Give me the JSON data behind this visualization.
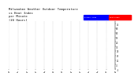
{
  "title": "Milwaukee Weather Outdoor Temperature\nvs Heat Index\nper Minute\n(24 Hours)",
  "title_fontsize": 2.8,
  "background_color": "#ffffff",
  "plot_background": "#ffffff",
  "dot_color_temp": "#ff0000",
  "dot_color_heat": "#ff0000",
  "legend_blue_color": "#0000ff",
  "legend_red_color": "#ff0000",
  "minutes": 1440,
  "y_min": -4,
  "y_max": 80,
  "yticks": [
    -4,
    4,
    12,
    20,
    28,
    36,
    44,
    52,
    60,
    68,
    76
  ],
  "ytick_labels": [
    "-4",
    "4",
    "12",
    "20",
    "28",
    "36",
    "44",
    "52",
    "60",
    "68",
    "76"
  ],
  "grid_color": "#888888",
  "dot_size": 0.15
}
